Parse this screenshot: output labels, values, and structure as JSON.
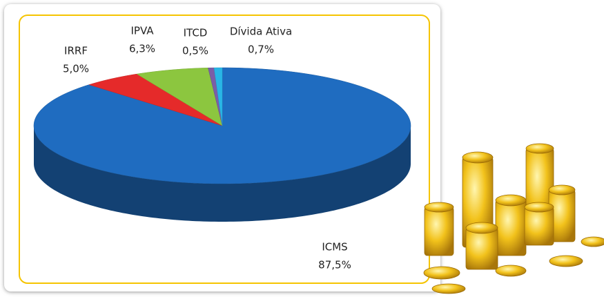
{
  "chart_data": {
    "type": "pie3d",
    "categories": [
      "ICMS",
      "IRRF",
      "IPVA",
      "ITCD",
      "Dívida Ativa"
    ],
    "values": [
      87.5,
      5.0,
      6.3,
      0.5,
      0.7
    ],
    "value_labels": [
      "87,5%",
      "5,0%",
      "6,3%",
      "0,5%",
      "0,7%"
    ],
    "colors": [
      "#1f6cc0",
      "#e52a2a",
      "#8cc63f",
      "#7b5ea7",
      "#29b6e6"
    ]
  }
}
